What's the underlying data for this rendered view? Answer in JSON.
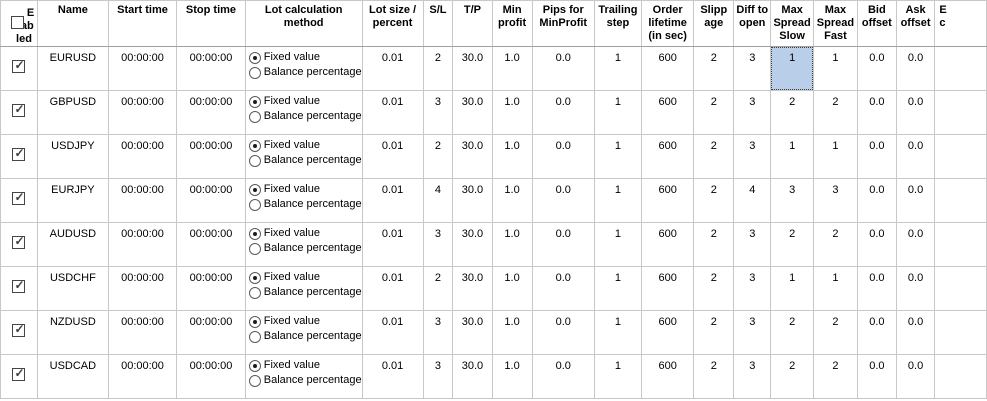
{
  "table": {
    "columns": [
      {
        "id": "enabled",
        "label": "Enabled"
      },
      {
        "id": "name",
        "label": "Name"
      },
      {
        "id": "start_time",
        "label": "Start time"
      },
      {
        "id": "stop_time",
        "label": "Stop time"
      },
      {
        "id": "lot_method",
        "label": "Lot calculation method"
      },
      {
        "id": "lot_size",
        "label": "Lot size / percent"
      },
      {
        "id": "sl",
        "label": "S/L"
      },
      {
        "id": "tp",
        "label": "T/P"
      },
      {
        "id": "min_profit",
        "label": "Min profit"
      },
      {
        "id": "pips_minprofit",
        "label": "Pips for MinProfit"
      },
      {
        "id": "trailing_step",
        "label": "Trailing step"
      },
      {
        "id": "order_lifetime",
        "label": "Order lifetime (in sec)"
      },
      {
        "id": "slippage",
        "label": "Slippage"
      },
      {
        "id": "diff_to_open",
        "label": "Diff to open"
      },
      {
        "id": "max_spread_slow",
        "label": "Max Spread Slow"
      },
      {
        "id": "max_spread_fast",
        "label": "Max Spread Fast"
      },
      {
        "id": "bid_offset",
        "label": "Bid offset"
      },
      {
        "id": "ask_offset",
        "label": "Ask offset"
      },
      {
        "id": "cutoff",
        "label": "E\nc"
      }
    ],
    "radio_options": {
      "fixed": "Fixed value",
      "balance": "Balance percentage"
    },
    "rows": [
      {
        "enabled": true,
        "name": "EURUSD",
        "start_time": "00:00:00",
        "stop_time": "00:00:00",
        "lot_method": "fixed",
        "lot_size": "0.01",
        "sl": "2",
        "tp": "30.0",
        "min_profit": "1.0",
        "pips_minprofit": "0.0",
        "trailing_step": "1",
        "order_lifetime": "600",
        "slippage": "2",
        "diff_to_open": "3",
        "max_spread_slow": "1",
        "max_spread_fast": "1",
        "bid_offset": "0.0",
        "ask_offset": "0.0"
      },
      {
        "enabled": true,
        "name": "GBPUSD",
        "start_time": "00:00:00",
        "stop_time": "00:00:00",
        "lot_method": "fixed",
        "lot_size": "0.01",
        "sl": "3",
        "tp": "30.0",
        "min_profit": "1.0",
        "pips_minprofit": "0.0",
        "trailing_step": "1",
        "order_lifetime": "600",
        "slippage": "2",
        "diff_to_open": "3",
        "max_spread_slow": "2",
        "max_spread_fast": "2",
        "bid_offset": "0.0",
        "ask_offset": "0.0"
      },
      {
        "enabled": true,
        "name": "USDJPY",
        "start_time": "00:00:00",
        "stop_time": "00:00:00",
        "lot_method": "fixed",
        "lot_size": "0.01",
        "sl": "2",
        "tp": "30.0",
        "min_profit": "1.0",
        "pips_minprofit": "0.0",
        "trailing_step": "1",
        "order_lifetime": "600",
        "slippage": "2",
        "diff_to_open": "3",
        "max_spread_slow": "1",
        "max_spread_fast": "1",
        "bid_offset": "0.0",
        "ask_offset": "0.0"
      },
      {
        "enabled": true,
        "name": "EURJPY",
        "start_time": "00:00:00",
        "stop_time": "00:00:00",
        "lot_method": "fixed",
        "lot_size": "0.01",
        "sl": "4",
        "tp": "30.0",
        "min_profit": "1.0",
        "pips_minprofit": "0.0",
        "trailing_step": "1",
        "order_lifetime": "600",
        "slippage": "2",
        "diff_to_open": "4",
        "max_spread_slow": "3",
        "max_spread_fast": "3",
        "bid_offset": "0.0",
        "ask_offset": "0.0"
      },
      {
        "enabled": true,
        "name": "AUDUSD",
        "start_time": "00:00:00",
        "stop_time": "00:00:00",
        "lot_method": "fixed",
        "lot_size": "0.01",
        "sl": "3",
        "tp": "30.0",
        "min_profit": "1.0",
        "pips_minprofit": "0.0",
        "trailing_step": "1",
        "order_lifetime": "600",
        "slippage": "2",
        "diff_to_open": "3",
        "max_spread_slow": "2",
        "max_spread_fast": "2",
        "bid_offset": "0.0",
        "ask_offset": "0.0"
      },
      {
        "enabled": true,
        "name": "USDCHF",
        "start_time": "00:00:00",
        "stop_time": "00:00:00",
        "lot_method": "fixed",
        "lot_size": "0.01",
        "sl": "2",
        "tp": "30.0",
        "min_profit": "1.0",
        "pips_minprofit": "0.0",
        "trailing_step": "1",
        "order_lifetime": "600",
        "slippage": "2",
        "diff_to_open": "3",
        "max_spread_slow": "1",
        "max_spread_fast": "1",
        "bid_offset": "0.0",
        "ask_offset": "0.0"
      },
      {
        "enabled": true,
        "name": "NZDUSD",
        "start_time": "00:00:00",
        "stop_time": "00:00:00",
        "lot_method": "fixed",
        "lot_size": "0.01",
        "sl": "3",
        "tp": "30.0",
        "min_profit": "1.0",
        "pips_minprofit": "0.0",
        "trailing_step": "1",
        "order_lifetime": "600",
        "slippage": "2",
        "diff_to_open": "3",
        "max_spread_slow": "2",
        "max_spread_fast": "2",
        "bid_offset": "0.0",
        "ask_offset": "0.0"
      },
      {
        "enabled": true,
        "name": "USDCAD",
        "start_time": "00:00:00",
        "stop_time": "00:00:00",
        "lot_method": "fixed",
        "lot_size": "0.01",
        "sl": "3",
        "tp": "30.0",
        "min_profit": "1.0",
        "pips_minprofit": "0.0",
        "trailing_step": "1",
        "order_lifetime": "600",
        "slippage": "2",
        "diff_to_open": "3",
        "max_spread_slow": "2",
        "max_spread_fast": "2",
        "bid_offset": "0.0",
        "ask_offset": "0.0"
      }
    ],
    "selection": {
      "row": 0,
      "column": "max_spread_slow"
    }
  },
  "colors": {
    "selection_bg": "#b9cee8",
    "grid_line": "#c8c8c8",
    "header_separator": "#9f9f9f",
    "text": "#000000"
  }
}
